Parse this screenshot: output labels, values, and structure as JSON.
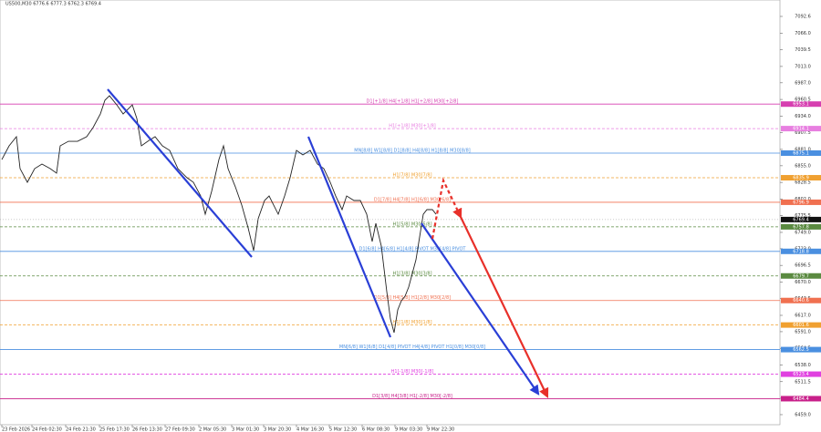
{
  "chart_data": {
    "type": "line",
    "title": "US500,M30  6776.6 6777.3 6762.3 6769.4",
    "last_price": 6769.4,
    "xlim": [
      0,
      853
    ],
    "xticks": [
      {
        "value": 0,
        "label": "23 Feb 2026"
      },
      {
        "value": 33,
        "label": "24 Feb 02:30"
      },
      {
        "value": 70,
        "label": "24 Feb 21:30"
      },
      {
        "value": 107,
        "label": "25 Feb 17:30"
      },
      {
        "value": 143,
        "label": "26 Feb 13:30"
      },
      {
        "value": 179,
        "label": "27 Feb 09:30"
      },
      {
        "value": 216,
        "label": "2 Mar 05:30"
      },
      {
        "value": 252,
        "label": "3 Mar 01:30"
      },
      {
        "value": 287,
        "label": "3 Mar 20:30"
      },
      {
        "value": 323,
        "label": "4 Mar 16:30"
      },
      {
        "value": 359,
        "label": "5 Mar 12:30"
      },
      {
        "value": 395,
        "label": "6 Mar 08:30"
      },
      {
        "value": 431,
        "label": "9 Mar 03:30"
      },
      {
        "value": 466,
        "label": "9 Mar 22:30"
      }
    ],
    "ylim": [
      6440.1,
      7118.7
    ],
    "yticks": [
      7092.6,
      {
        "value": 7066,
        "label": "7066.0"
      },
      7039.5,
      {
        "value": 7013,
        "label": "7013.0"
      },
      {
        "value": 6987,
        "label": "6987.0"
      },
      6960.5,
      {
        "value": 6934,
        "label": "6934.0"
      },
      6907.5,
      {
        "value": 6881,
        "label": "6881.0"
      },
      {
        "value": 6855,
        "label": "6855.0"
      },
      6828.5,
      {
        "value": 6802,
        "label": "6802.0"
      },
      6775.5,
      {
        "value": 6749,
        "label": "6749.0"
      },
      {
        "value": 6723,
        "label": "6723.0"
      },
      6696.5,
      {
        "value": 6670,
        "label": "6670.0"
      },
      6643.5,
      {
        "value": 6617,
        "label": "6617.0"
      },
      {
        "value": 6591,
        "label": "6591.0"
      },
      6564.5,
      {
        "value": 6538,
        "label": "6538.0"
      },
      6511.5,
      {
        "value": 6485,
        "label": "6485.0"
      },
      {
        "value": 6459,
        "label": "6459.0"
      }
    ],
    "price": {
      "color": "#222222",
      "x": [
        0,
        8,
        16,
        20,
        28,
        36,
        44,
        53,
        60,
        64,
        73,
        83,
        93,
        100,
        108,
        113,
        118,
        126,
        133,
        143,
        148,
        153,
        160,
        168,
        176,
        184,
        193,
        203,
        210,
        218,
        223,
        230,
        238,
        243,
        248,
        256,
        263,
        270,
        276,
        281,
        288,
        293,
        298,
        303,
        310,
        316,
        323,
        330,
        338,
        346,
        353,
        360,
        366,
        373,
        378,
        386,
        393,
        400,
        406,
        410,
        416,
        422,
        426,
        430,
        434,
        438,
        442,
        446,
        450,
        454,
        458,
        462,
        466,
        472,
        476
      ],
      "values": [
        6864.9,
        6886.7,
        6901.2,
        6850.4,
        6828.7,
        6850.4,
        6857.7,
        6850.4,
        6843.2,
        6886.7,
        6893.9,
        6893.9,
        6901.2,
        6915.7,
        6937.4,
        6959.2,
        6966.4,
        6951.9,
        6937.4,
        6951.9,
        6930.2,
        6886.7,
        6893.9,
        6901.2,
        6886.7,
        6879.4,
        6850.4,
        6835.9,
        6828.7,
        6806.9,
        6777.9,
        6814.2,
        6864.9,
        6886.7,
        6850.4,
        6821.4,
        6792.4,
        6756.2,
        6719.9,
        6770.7,
        6799.7,
        6806.9,
        6792.4,
        6777.9,
        6806.9,
        6835.9,
        6879.4,
        6872.2,
        6879.4,
        6857.7,
        6850.4,
        6828.7,
        6806.9,
        6785.2,
        6806.9,
        6799.7,
        6799.7,
        6777.9,
        6734.4,
        6763.4,
        6727.2,
        6654.7,
        6611.2,
        6589.4,
        6625.7,
        6640.2,
        6647.4,
        6661.9,
        6683.7,
        6705.4,
        6741.7,
        6777.9,
        6785.2,
        6785.2,
        6777.9
      ]
    },
    "levels": [
      {
        "label": "D1[+1/8] H4[+1/8] H1[+2/8] M30[+2/8]",
        "value": 6953.1,
        "color": "#d63fb0",
        "dashed": false
      },
      {
        "label": "H1[+1/8] M30[+1/8]",
        "value": 6914.1,
        "color": "#e77fe0",
        "dashed": true
      },
      {
        "label": "MN[8/8] W1[8/8] D1[8/8] H4[8/8] H1[8/8] M30[8/8]",
        "value": 6875.1,
        "color": "#4a8fe0",
        "dashed": false
      },
      {
        "label": "H1[7/8] M30[7/8]",
        "value": 6835.9,
        "color": "#f0a030",
        "dashed": true
      },
      {
        "label": "D1[7/8] H4[7/8] H1[6/8] M30[6/8]",
        "value": 6796.9,
        "color": "#f07050",
        "dashed": false
      },
      {
        "label": "H1[5/8] M30[5/8]",
        "value": 6757.8,
        "color": "#5a8a40",
        "dashed": true
      },
      {
        "label": "D1[6/8] H4[6/8] H1[4/8] PIVOT M30[4/8] PIVOT",
        "value": 6718.8,
        "color": "#4a8fe0",
        "dashed": false
      },
      {
        "label": "H1[3/8] M30[3/8]",
        "value": 6679.7,
        "color": "#5a8a40",
        "dashed": true
      },
      {
        "label": "D1[5/8] H4[5/8] H1[2/8] M30[2/8]",
        "value": 6640.6,
        "color": "#f07050",
        "dashed": false
      },
      {
        "label": "H1[1/8] M30[1/8]",
        "value": 6601.6,
        "color": "#f0a030",
        "dashed": true
      },
      {
        "label": "MN[6/8] W1[6/8] D1[4/8] PIVOT H4[4/8] PIVOT H1[0/8] M30[0/8]",
        "value": 6562.5,
        "color": "#4a8fe0",
        "dashed": false
      },
      {
        "label": "H1[-1/8] M30[-1/8]",
        "value": 6523.4,
        "color": "#e040e0",
        "dashed": true
      },
      {
        "label": "D1[3/8] H4[3/8] H1[-2/8] M30[-2/8]",
        "value": 6484.4,
        "color": "#c8208a",
        "dashed": false
      }
    ],
    "trendlines": [
      {
        "color": "#2a3fd6",
        "dashed": false,
        "arrow": false,
        "x": [
          116,
          274
        ],
        "values": [
          6976.6,
          6709.8
        ]
      },
      {
        "color": "#2a3fd6",
        "dashed": false,
        "arrow": false,
        "x": [
          336,
          426
        ],
        "values": [
          6901.2,
          6582.2
        ]
      },
      {
        "color": "#2a3fd6",
        "dashed": false,
        "arrow": true,
        "x": [
          460,
          588
        ],
        "values": [
          6763.4,
          6492.3
        ]
      },
      {
        "color": "#e8302a",
        "dashed": true,
        "arrow": true,
        "x": [
          472,
          484,
          503
        ],
        "values": [
          6738.8,
          6831.6,
          6773.6
        ]
      },
      {
        "color": "#e8302a",
        "dashed": false,
        "arrow": true,
        "x": [
          503,
          598
        ],
        "values": [
          6773.6,
          6488.0
        ]
      }
    ]
  }
}
